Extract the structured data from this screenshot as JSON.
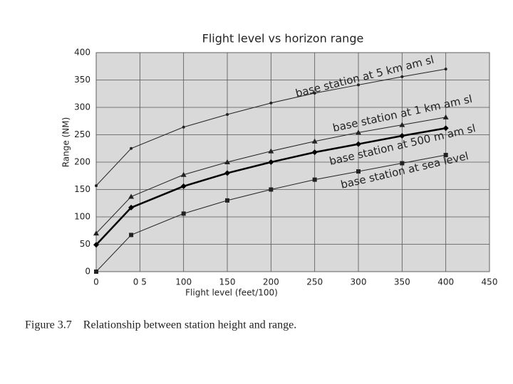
{
  "chart_data": {
    "type": "line",
    "title": "Flight level vs horizon range",
    "x_label": "Flight level (feet/100)",
    "y_label": "Range (NM)",
    "caption": "Figure 3.7    Relationship between station height and range.",
    "x": [
      0,
      40,
      100,
      150,
      200,
      250,
      300,
      350,
      400
    ],
    "xlim": [
      0,
      450
    ],
    "xticks": [
      0,
      {
        "value": 50,
        "label": "0 5"
      },
      100,
      150,
      200,
      250,
      300,
      350,
      400,
      450
    ],
    "ylim": [
      0,
      400
    ],
    "yticks": [
      0,
      50,
      100,
      150,
      200,
      250,
      300,
      350,
      400
    ],
    "grid": true,
    "series": [
      {
        "name": "base station at 5 km am sl",
        "color": "#222222",
        "marker": "dot",
        "width": 1,
        "values": [
          157,
          225,
          264,
          287,
          308,
          326,
          341,
          356,
          370
        ]
      },
      {
        "name": "base station at 1 km am sl",
        "color": "#222222",
        "marker": "triangle",
        "width": 1,
        "values": [
          70,
          137,
          177,
          200,
          220,
          238,
          254,
          268,
          282
        ]
      },
      {
        "name": "base station at 500 m am sl",
        "color": "#000000",
        "marker": "diamond",
        "width": 2.5,
        "values": [
          49,
          117,
          156,
          180,
          200,
          218,
          233,
          248,
          262
        ]
      },
      {
        "name": "base station at sea level",
        "color": "#222222",
        "marker": "square",
        "width": 1,
        "values": [
          0,
          67,
          106,
          130,
          150,
          168,
          183,
          198,
          213
        ]
      }
    ]
  }
}
